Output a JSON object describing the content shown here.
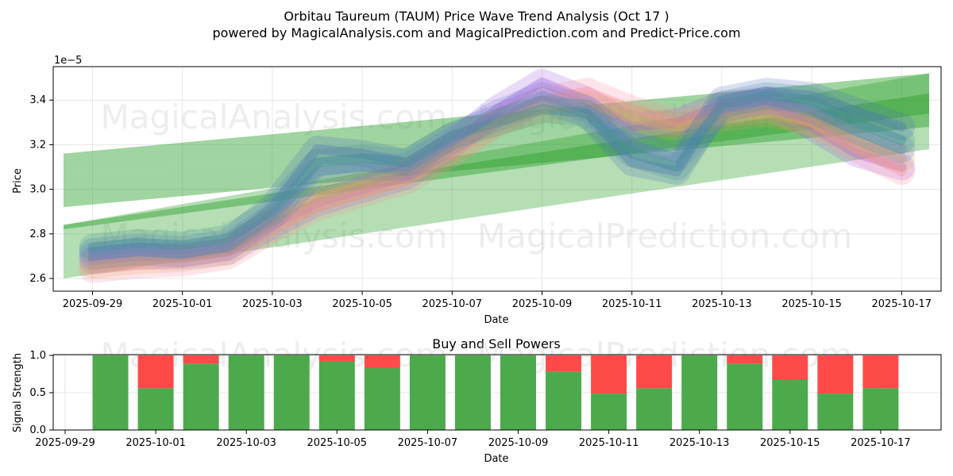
{
  "figure": {
    "title_line1": "Orbitau Taureum (TAUM) Price Wave Trend Analysis (Oct 17 )",
    "title_line2": "powered by MagicalAnalysis.com and MagicalPrediction.com and Predict-Price.com",
    "watermarks": [
      "MagicalAnalysis.com",
      "MagicalPrediction.com"
    ]
  },
  "colors": {
    "green": "#2ca02c",
    "buy": "#4caa4c",
    "sell": "#ff4a4a",
    "waves": [
      "#4f6fbf",
      "#9b59e0",
      "#ff8a9a",
      "#d6a85a",
      "#6a7ad0",
      "#3f8f8f"
    ]
  },
  "chart_data": [
    {
      "type": "line",
      "title": "",
      "xlabel": "Date",
      "ylabel": "Price",
      "y_exponent_label": "1e−5",
      "x_ticks": [
        "2025-09-29",
        "2025-10-01",
        "2025-10-03",
        "2025-10-05",
        "2025-10-07",
        "2025-10-09",
        "2025-10-11",
        "2025-10-13",
        "2025-10-15",
        "2025-10-17"
      ],
      "y_ticks": [
        "2.6",
        "2.8",
        "3.0",
        "3.2",
        "3.4"
      ],
      "xlim": [
        "2025-09-28",
        "2025-10-17"
      ],
      "ylim": [
        2.55,
        3.55
      ],
      "grid": true,
      "series": [
        {
          "x": [
            "2025-09-29",
            "2025-09-30",
            "2025-10-01",
            "2025-10-02",
            "2025-10-03",
            "2025-10-04",
            "2025-10-05",
            "2025-10-06",
            "2025-10-07",
            "2025-10-08",
            "2025-10-09",
            "2025-10-10",
            "2025-10-11",
            "2025-10-12",
            "2025-10-13",
            "2025-10-14",
            "2025-10-15",
            "2025-10-16",
            "2025-10-17"
          ],
          "values": [
            2.72,
            2.74,
            2.73,
            2.76,
            2.92,
            3.18,
            3.16,
            3.12,
            3.24,
            3.32,
            3.4,
            3.34,
            3.12,
            3.08,
            3.4,
            3.44,
            3.42,
            3.35,
            3.28
          ]
        },
        {
          "x": [
            "2025-09-29",
            "2025-09-30",
            "2025-10-01",
            "2025-10-02",
            "2025-10-03",
            "2025-10-04",
            "2025-10-05",
            "2025-10-06",
            "2025-10-07",
            "2025-10-08",
            "2025-10-09",
            "2025-10-10",
            "2025-10-11",
            "2025-10-12",
            "2025-10-13",
            "2025-10-14",
            "2025-10-15",
            "2025-10-16",
            "2025-10-17"
          ],
          "values": [
            2.68,
            2.7,
            2.7,
            2.72,
            2.84,
            2.94,
            3.0,
            3.06,
            3.2,
            3.36,
            3.48,
            3.4,
            3.28,
            3.3,
            3.38,
            3.4,
            3.28,
            3.16,
            3.1
          ]
        },
        {
          "x": [
            "2025-09-29",
            "2025-09-30",
            "2025-10-01",
            "2025-10-02",
            "2025-10-03",
            "2025-10-04",
            "2025-10-05",
            "2025-10-06",
            "2025-10-07",
            "2025-10-08",
            "2025-10-09",
            "2025-10-10",
            "2025-10-11",
            "2025-10-12",
            "2025-10-13",
            "2025-10-14",
            "2025-10-15",
            "2025-10-16",
            "2025-10-17"
          ],
          "values": [
            2.64,
            2.66,
            2.67,
            2.7,
            2.82,
            2.92,
            2.98,
            3.04,
            3.16,
            3.3,
            3.4,
            3.44,
            3.36,
            3.3,
            3.34,
            3.36,
            3.3,
            3.18,
            3.08
          ]
        },
        {
          "x": [
            "2025-09-29",
            "2025-09-30",
            "2025-10-01",
            "2025-10-02",
            "2025-10-03",
            "2025-10-04",
            "2025-10-05",
            "2025-10-06",
            "2025-10-07",
            "2025-10-08",
            "2025-10-09",
            "2025-10-10",
            "2025-10-11",
            "2025-10-12",
            "2025-10-13",
            "2025-10-14",
            "2025-10-15",
            "2025-10-16",
            "2025-10-17"
          ],
          "values": [
            2.66,
            2.68,
            2.69,
            2.72,
            2.86,
            2.96,
            3.02,
            3.08,
            3.18,
            3.3,
            3.36,
            3.38,
            3.32,
            3.28,
            3.32,
            3.34,
            3.3,
            3.22,
            3.14
          ]
        },
        {
          "x": [
            "2025-09-29",
            "2025-09-30",
            "2025-10-01",
            "2025-10-02",
            "2025-10-03",
            "2025-10-04",
            "2025-10-05",
            "2025-10-06",
            "2025-10-07",
            "2025-10-08",
            "2025-10-09",
            "2025-10-10",
            "2025-10-11",
            "2025-10-12",
            "2025-10-13",
            "2025-10-14",
            "2025-10-15",
            "2025-10-16",
            "2025-10-17"
          ],
          "values": [
            2.7,
            2.72,
            2.71,
            2.74,
            2.88,
            3.08,
            3.1,
            3.1,
            3.22,
            3.34,
            3.42,
            3.36,
            3.2,
            3.14,
            3.36,
            3.4,
            3.36,
            3.26,
            3.18
          ]
        },
        {
          "x": [
            "2025-09-29",
            "2025-09-30",
            "2025-10-01",
            "2025-10-02",
            "2025-10-03",
            "2025-10-04",
            "2025-10-05",
            "2025-10-06",
            "2025-10-07",
            "2025-10-08",
            "2025-10-09",
            "2025-10-10",
            "2025-10-11",
            "2025-10-12",
            "2025-10-13",
            "2025-10-14",
            "2025-10-15",
            "2025-10-16",
            "2025-10-17"
          ],
          "values": [
            2.74,
            2.76,
            2.75,
            2.78,
            2.9,
            3.12,
            3.14,
            3.12,
            3.24,
            3.3,
            3.36,
            3.34,
            3.16,
            3.1,
            3.38,
            3.42,
            3.4,
            3.3,
            3.22
          ]
        }
      ],
      "trend_bands": [
        {
          "x": [
            "2025-09-28",
            "2025-10-17"
          ],
          "lower": [
            2.6,
            3.18
          ],
          "upper": [
            2.84,
            3.52
          ]
        },
        {
          "x": [
            "2025-09-28",
            "2025-10-17"
          ],
          "lower": [
            3.06,
            3.36
          ],
          "upper": [
            3.16,
            3.52
          ]
        },
        {
          "x": [
            "2025-09-28",
            "2025-10-17"
          ],
          "lower": [
            2.92,
            3.28
          ],
          "upper": [
            3.06,
            3.36
          ]
        },
        {
          "x": [
            "2025-09-28",
            "2025-10-17"
          ],
          "lower": [
            2.82,
            3.34
          ],
          "upper": [
            2.84,
            3.43
          ]
        }
      ]
    },
    {
      "type": "bar",
      "title": "Buy and Sell Powers",
      "xlabel": "Date",
      "ylabel": "Signal Strength",
      "x_ticks": [
        "2025-09-29",
        "2025-10-01",
        "2025-10-03",
        "2025-10-05",
        "2025-10-07",
        "2025-10-09",
        "2025-10-11",
        "2025-10-13",
        "2025-10-15",
        "2025-10-17"
      ],
      "y_ticks": [
        "0.0",
        "0.5",
        "1.0"
      ],
      "ylim": [
        0,
        1
      ],
      "grid": true,
      "categories": [
        "2025-09-30",
        "2025-10-01",
        "2025-10-02",
        "2025-10-03",
        "2025-10-04",
        "2025-10-05",
        "2025-10-06",
        "2025-10-07",
        "2025-10-08",
        "2025-10-09",
        "2025-10-10",
        "2025-10-11",
        "2025-10-12",
        "2025-10-13",
        "2025-10-14",
        "2025-10-15",
        "2025-10-16",
        "2025-10-17"
      ],
      "series": [
        {
          "values": [
            1.0,
            0.56,
            0.89,
            1.0,
            1.0,
            0.92,
            0.83,
            1.0,
            1.0,
            1.0,
            0.78,
            0.49,
            0.56,
            1.0,
            0.89,
            0.67,
            0.49,
            0.56
          ]
        },
        {
          "values": [
            0.0,
            0.44,
            0.11,
            0.0,
            0.0,
            0.08,
            0.17,
            0.0,
            0.0,
            0.0,
            0.22,
            0.51,
            0.44,
            0.0,
            0.11,
            0.33,
            0.51,
            0.44
          ]
        }
      ]
    }
  ]
}
